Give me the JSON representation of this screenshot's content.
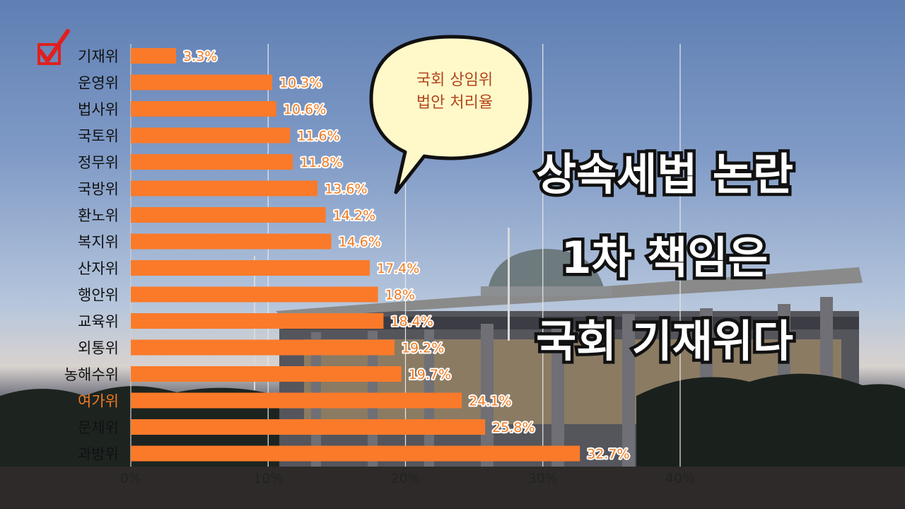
{
  "chart_data": {
    "type": "bar",
    "orientation": "horizontal",
    "categories": [
      "기재위",
      "운영위",
      "법사위",
      "국토위",
      "정무위",
      "국방위",
      "환노위",
      "복지위",
      "산자위",
      "행안위",
      "교육위",
      "외통위",
      "농해수위",
      "여가위",
      "문체위",
      "과방위"
    ],
    "values": [
      3.3,
      10.3,
      10.6,
      11.6,
      11.8,
      13.6,
      14.2,
      14.6,
      17.4,
      18,
      18.4,
      19.2,
      19.7,
      24.1,
      25.8,
      32.7
    ],
    "value_labels": [
      "3.3%",
      "10.3%",
      "10.6%",
      "11.6%",
      "11.8%",
      "13.6%",
      "14.2%",
      "14.6%",
      "17.4%",
      "18%",
      "18.4%",
      "19.2%",
      "19.7%",
      "24.1%",
      "25.8%",
      "32.7%"
    ],
    "x_ticks": [
      0,
      10,
      20,
      30,
      40
    ],
    "x_tick_labels": [
      "0%",
      "10%",
      "20%",
      "30%",
      "40%"
    ],
    "xlim": [
      0,
      40
    ],
    "grid": true,
    "bar_color": "#fa7a2a",
    "highlight_label_color": "#f07b22",
    "highlighted_category": "여가위",
    "checked_category": "기재위"
  },
  "icons": {
    "checkbox": "red-checkmark-icon"
  },
  "speech_bubble": {
    "line1": "국회 상임위",
    "line2": "법안 처리율"
  },
  "headline": {
    "line1": "상속세법 논란",
    "line2": "1차 책임은",
    "line3": "국회 기재위다"
  }
}
